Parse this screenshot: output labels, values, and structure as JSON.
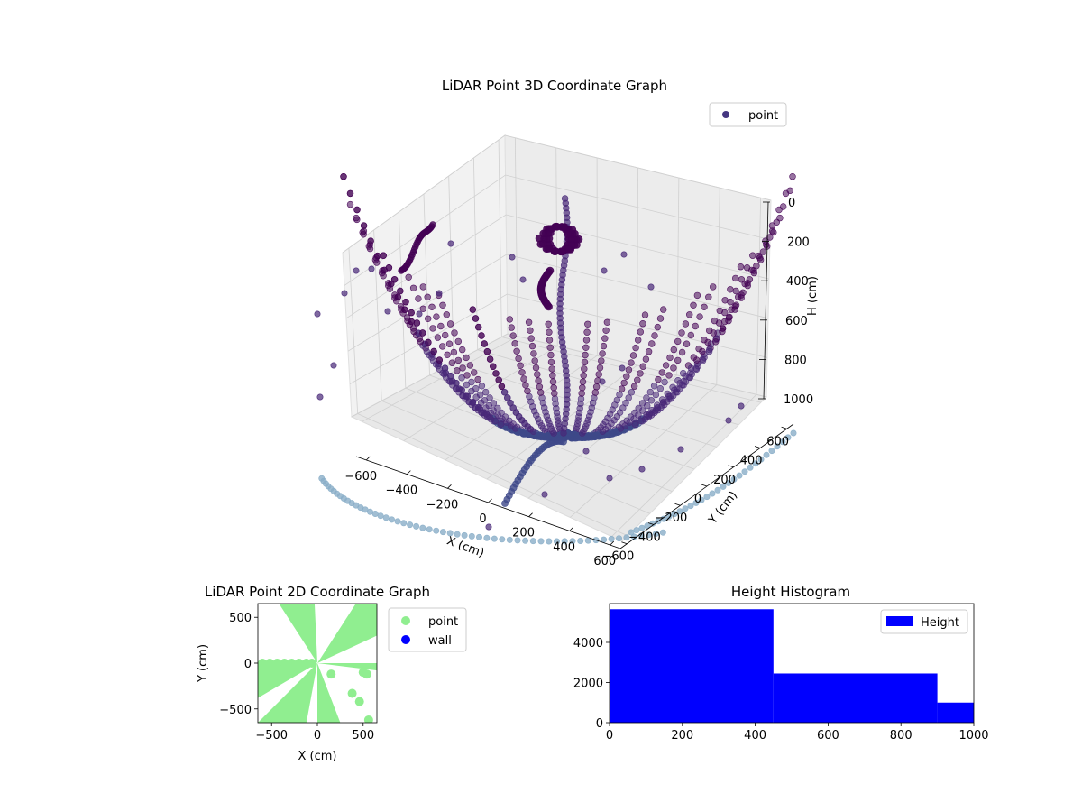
{
  "chart_data": [
    {
      "type": "scatter3d",
      "title": "LiDAR Point 3D Coordinate Graph",
      "xlabel": "X (cm)",
      "ylabel": "Y (cm)",
      "zlabel": "H (cm)",
      "xlim": [
        -650,
        650
      ],
      "ylim": [
        -650,
        650
      ],
      "zlim": [
        1000,
        0
      ],
      "x_ticks": [
        -600,
        -400,
        -200,
        0,
        200,
        400,
        600
      ],
      "y_ticks": [
        -600,
        -400,
        -200,
        0,
        200,
        400,
        600
      ],
      "z_ticks": [
        0,
        200,
        400,
        600,
        800,
        1000
      ],
      "x_tick_labels": [
        "−600",
        "−400",
        "−200",
        "0",
        "200",
        "400",
        "600"
      ],
      "y_tick_labels": [
        "−600",
        "−400",
        "−200",
        "0",
        "200",
        "400",
        "600"
      ],
      "z_tick_labels": [
        "0",
        "200",
        "400",
        "600",
        "800",
        "1000"
      ],
      "grid": true,
      "legend": {
        "placement": "top-right",
        "entries": [
          {
            "label": "point",
            "color": "#453781"
          }
        ]
      },
      "colormap": [
        "#440154",
        "#482878",
        "#3e4989",
        "#31688e",
        "#6b8fb0",
        "#8aaec8"
      ],
      "series": [
        {
          "name": "point",
          "description_ref": "LiDAR returns forming radial arcs from origin",
          "sample_fan_angles_deg": [
            95,
            105,
            115,
            125,
            135,
            145,
            155,
            165,
            175,
            185,
            200,
            215,
            230,
            245,
            260,
            275,
            290,
            305,
            320,
            335,
            350,
            5,
            20,
            35,
            50,
            65,
            80
          ]
        }
      ]
    },
    {
      "type": "scatter",
      "title": "LiDAR Point 2D Coordinate Graph",
      "xlabel": "X (cm)",
      "ylabel": "Y (cm)",
      "xlim": [
        -650,
        650
      ],
      "ylim": [
        -650,
        650
      ],
      "x_ticks": [
        -500,
        0,
        500
      ],
      "y_ticks": [
        -500,
        0,
        500
      ],
      "x_tick_labels": [
        "−500",
        "0",
        "500"
      ],
      "y_tick_labels": [
        "−500",
        "0",
        "500"
      ],
      "legend": {
        "placement": "outside-right",
        "entries": [
          {
            "label": "point",
            "color": "#90ee90"
          },
          {
            "label": "wall",
            "color": "#0000ff"
          }
        ]
      },
      "series": [
        {
          "name": "point",
          "color": "#90ee90",
          "sample_points": [
            [
              -600,
              0
            ],
            [
              -520,
              0
            ],
            [
              -440,
              0
            ],
            [
              -360,
              0
            ],
            [
              -280,
              0
            ],
            [
              -200,
              0
            ],
            [
              -120,
              0
            ],
            [
              -60,
              0
            ],
            [
              380,
              -330
            ],
            [
              460,
              -420
            ],
            [
              500,
              -100
            ],
            [
              540,
              -120
            ],
            [
              560,
              -620
            ],
            [
              150,
              -120
            ]
          ]
        },
        {
          "name": "wall",
          "color": "#0000ff",
          "points": []
        }
      ]
    },
    {
      "type": "histogram",
      "title": "Height Histogram",
      "xlabel": "",
      "ylabel": "",
      "bin_edges": [
        0,
        450,
        900,
        1000
      ],
      "counts": [
        5650,
        2450,
        1000
      ],
      "xlim": [
        0,
        1000
      ],
      "ylim": [
        0,
        5932
      ],
      "x_ticks": [
        0,
        200,
        400,
        600,
        800,
        1000
      ],
      "y_ticks": [
        0,
        2000,
        4000
      ],
      "legend": {
        "placement": "top-right",
        "entries": [
          {
            "label": "Height",
            "color": "#0000ff"
          }
        ]
      },
      "color": "#0000ff"
    }
  ]
}
